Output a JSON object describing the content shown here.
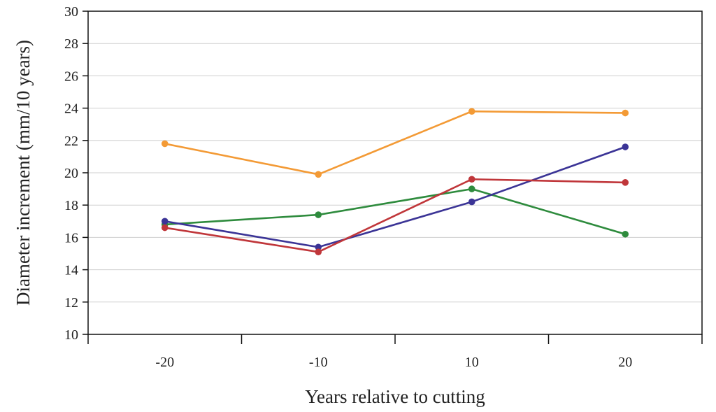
{
  "chart_data": {
    "type": "line",
    "title": "",
    "xlabel": "Years relative to cutting",
    "ylabel": "Diameter increment (mm/10 years)",
    "categories": [
      "-20",
      "-10",
      "10",
      "20"
    ],
    "ylim": [
      10,
      30
    ],
    "yticks": [
      10,
      12,
      14,
      16,
      18,
      20,
      22,
      24,
      26,
      28,
      30
    ],
    "grid": true,
    "legend": "none",
    "series": [
      {
        "name": "Orange series",
        "color": "#f39a35",
        "values": [
          21.8,
          19.9,
          23.8,
          23.7
        ]
      },
      {
        "name": "Green series",
        "color": "#2e8b3d",
        "values": [
          16.8,
          17.4,
          19.0,
          16.2
        ]
      },
      {
        "name": "Blue series",
        "color": "#3b3496",
        "values": [
          17.0,
          15.4,
          18.2,
          21.6
        ]
      },
      {
        "name": "Red series",
        "color": "#c0363a",
        "values": [
          16.6,
          15.1,
          19.6,
          19.4
        ]
      }
    ]
  }
}
